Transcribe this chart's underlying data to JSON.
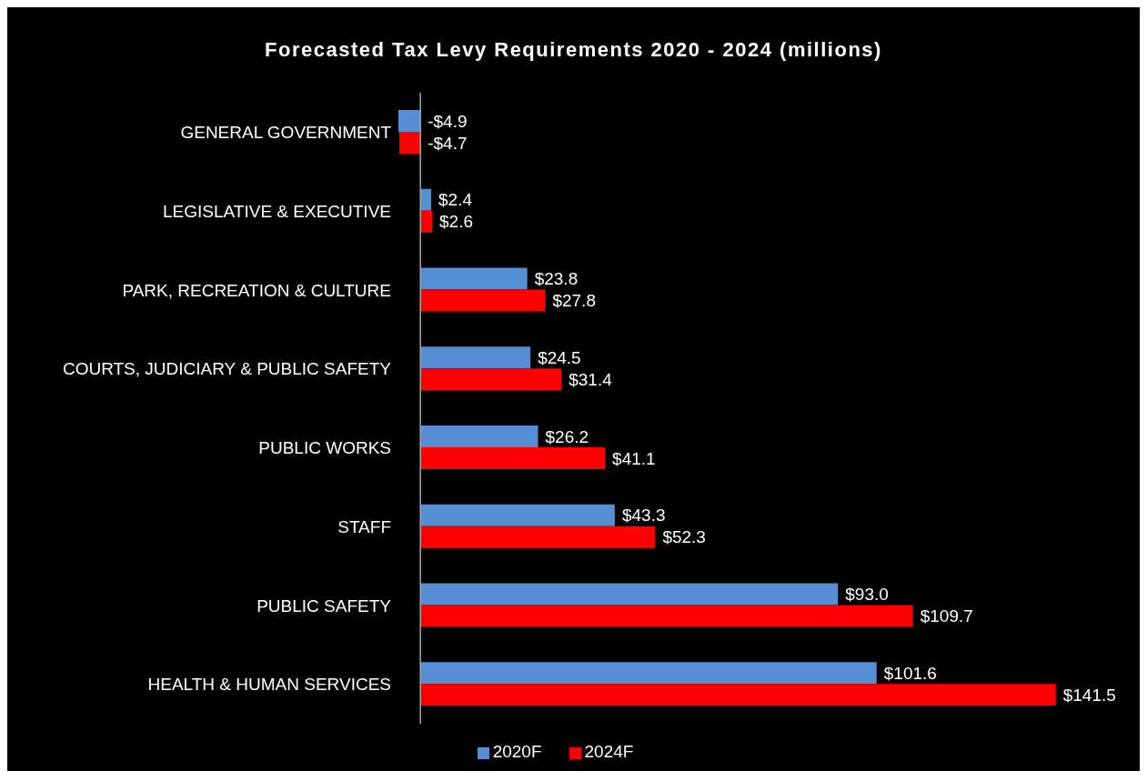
{
  "chart_data": {
    "type": "bar",
    "orientation": "horizontal",
    "title": "Forecasted Tax Levy Requirements 2020 - 2024 (millions)",
    "categories": [
      "GENERAL GOVERNMENT",
      "LEGISLATIVE & EXECUTIVE",
      "PARK, RECREATION & CULTURE",
      "COURTS, JUDICIARY & PUBLIC SAFETY",
      "PUBLIC WORKS",
      "STAFF",
      "PUBLIC SAFETY",
      "HEALTH & HUMAN SERVICES"
    ],
    "series": [
      {
        "name": "2020F",
        "color": "#558ed5",
        "values": [
          -4.9,
          2.4,
          23.8,
          24.5,
          26.2,
          43.3,
          93.0,
          101.6
        ],
        "value_labels": [
          "-$4.9",
          "$2.4",
          "$23.8",
          "$24.5",
          "$26.2",
          "$43.3",
          "$93.0",
          "$101.6"
        ]
      },
      {
        "name": "2024F",
        "color": "#ff0000",
        "values": [
          -4.7,
          2.6,
          27.8,
          31.4,
          41.1,
          52.3,
          109.7,
          141.5
        ],
        "value_labels": [
          "-$4.7",
          "$2.6",
          "$27.8",
          "$31.4",
          "$41.1",
          "$52.3",
          "$109.7",
          "$141.5"
        ]
      }
    ],
    "legend": "bottom",
    "grid": false
  }
}
